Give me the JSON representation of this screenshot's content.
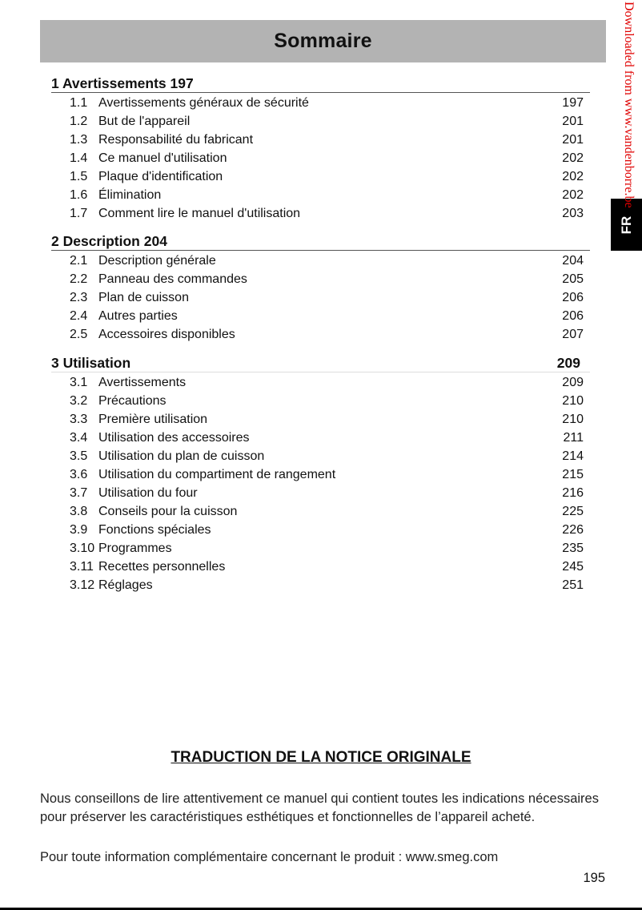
{
  "header": {
    "title": "Sommaire"
  },
  "side_tab": "FR",
  "watermark": "Downloaded from www.vandenborre.be",
  "sections": [
    {
      "heading": "1 Avertissements 197",
      "page": "",
      "items": [
        {
          "num": "1.1",
          "title": "Avertissements généraux de sécurité",
          "page": "197"
        },
        {
          "num": "1.2",
          "title": "But de l'appareil",
          "page": "201"
        },
        {
          "num": "1.3",
          "title": "Responsabilité du fabricant",
          "page": "201"
        },
        {
          "num": "1.4",
          "title": "Ce manuel d'utilisation",
          "page": "202"
        },
        {
          "num": "1.5",
          "title": "Plaque d'identification",
          "page": "202"
        },
        {
          "num": "1.6",
          "title": "Élimination",
          "page": "202"
        },
        {
          "num": "1.7",
          "title": "Comment lire le manuel d'utilisation",
          "page": "203"
        }
      ]
    },
    {
      "heading": "2 Description 204",
      "page": "",
      "items": [
        {
          "num": "2.1",
          "title": "Description générale",
          "page": "204"
        },
        {
          "num": "2.2",
          "title": "Panneau des commandes",
          "page": "205"
        },
        {
          "num": "2.3",
          "title": "Plan de cuisson",
          "page": "206"
        },
        {
          "num": "2.4",
          "title": "Autres parties",
          "page": "206"
        },
        {
          "num": "2.5",
          "title": "Accessoires disponibles",
          "page": "207"
        }
      ]
    },
    {
      "heading": "3 Utilisation",
      "page": "209",
      "items": [
        {
          "num": "3.1",
          "title": "Avertissements",
          "page": "209"
        },
        {
          "num": "3.2",
          "title": "Précautions",
          "page": "210"
        },
        {
          "num": "3.3",
          "title": "Première utilisation",
          "page": "210"
        },
        {
          "num": "3.4",
          "title": "Utilisation des accessoires",
          "page": "211"
        },
        {
          "num": "3.5",
          "title": "Utilisation du plan de cuisson",
          "page": "214"
        },
        {
          "num": "3.6",
          "title": "Utilisation du compartiment de rangement",
          "page": "215"
        },
        {
          "num": "3.7",
          "title": "Utilisation du four",
          "page": "216"
        },
        {
          "num": "3.8",
          "title": "Conseils pour la cuisson",
          "page": "225"
        },
        {
          "num": "3.9",
          "title": "Fonctions spéciales",
          "page": "226"
        },
        {
          "num": "3.10",
          "title": "Programmes",
          "page": "235"
        },
        {
          "num": "3.11",
          "title": "Recettes personnelles",
          "page": "245"
        },
        {
          "num": "3.12",
          "title": "Réglages",
          "page": "251"
        }
      ]
    }
  ],
  "footer": {
    "title": "TRADUCTION DE LA NOTICE ORIGINALE",
    "paragraph1": "Nous conseillons de lire attentivement ce manuel qui contient toutes les indications nécessaires pour préserver les caractéristiques esthétiques et fonctionnelles de l’appareil acheté.",
    "paragraph2": "Pour toute information complémentaire concernant le produit : www.smeg.com",
    "page_number": "195"
  }
}
